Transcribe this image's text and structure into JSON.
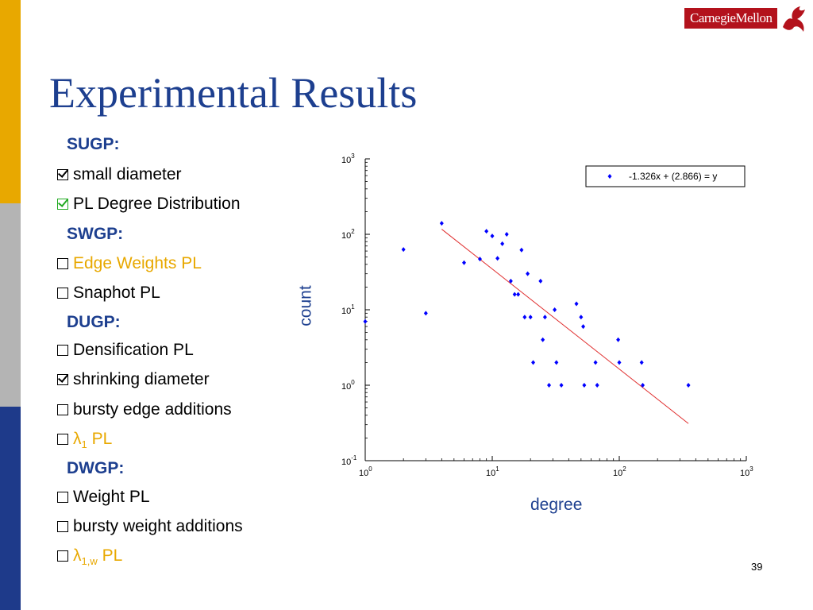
{
  "slide": {
    "title": "Experimental Results",
    "page_number": "39",
    "logo_text": "CarnegieMellon"
  },
  "list": {
    "sugp": "SUGP:",
    "small_diameter": "small diameter",
    "pl_degree": "PL Degree Distribution",
    "swgp": "SWGP:",
    "edge_weights": "Edge Weights PL",
    "snaphot": "Snaphot PL",
    "dugp": "DUGP:",
    "densification": "Densification PL",
    "shrinking": "shrinking diameter",
    "bursty_edge": "bursty edge additions",
    "lambda1_sym": "λ",
    "lambda1_sub": "1",
    "lambda1_pl": "PL",
    "dwgp": "DWGP:",
    "weight_pl": "Weight PL",
    "bursty_weight": "bursty weight additions",
    "lambda1w_sym": "λ",
    "lambda1w_sub": "1,w",
    "lambda1w_pl": "PL"
  },
  "colors": {
    "title": "#1d3f8f",
    "accent_orange": "#e8a800",
    "check_green": "#22aa22",
    "points": "#0000ff",
    "fit_line": "#e03030"
  },
  "chart_data": {
    "type": "scatter",
    "xlabel": "degree",
    "ylabel": "count",
    "xscale": "log",
    "yscale": "log",
    "xlim": [
      1,
      1000
    ],
    "ylim": [
      0.1,
      1000
    ],
    "x_tick_labels": [
      {
        "base": "10",
        "exp": "0"
      },
      {
        "base": "10",
        "exp": "1"
      },
      {
        "base": "10",
        "exp": "2"
      },
      {
        "base": "10",
        "exp": "3"
      }
    ],
    "y_tick_labels": [
      {
        "base": "10",
        "exp": "-1"
      },
      {
        "base": "10",
        "exp": "0"
      },
      {
        "base": "10",
        "exp": "1"
      },
      {
        "base": "10",
        "exp": "2"
      },
      {
        "base": "10",
        "exp": "3"
      }
    ],
    "legend": {
      "label": "-1.326x + (2.866) = y",
      "position": "top-right"
    },
    "fit": {
      "slope": -1.326,
      "intercept": 2.866,
      "x_range": [
        4,
        350
      ]
    },
    "points": [
      [
        1,
        7
      ],
      [
        2,
        63
      ],
      [
        3,
        9
      ],
      [
        4,
        140
      ],
      [
        6,
        42
      ],
      [
        8,
        47
      ],
      [
        9,
        110
      ],
      [
        10,
        95
      ],
      [
        11,
        48
      ],
      [
        12,
        75
      ],
      [
        13,
        100
      ],
      [
        14,
        24
      ],
      [
        15,
        16
      ],
      [
        16,
        16
      ],
      [
        17,
        62
      ],
      [
        18,
        8
      ],
      [
        19,
        30
      ],
      [
        20,
        8
      ],
      [
        21,
        2
      ],
      [
        24,
        24
      ],
      [
        25,
        4
      ],
      [
        26,
        8
      ],
      [
        28,
        1
      ],
      [
        31,
        10
      ],
      [
        32,
        2
      ],
      [
        35,
        1
      ],
      [
        46,
        12
      ],
      [
        50,
        8
      ],
      [
        52,
        6
      ],
      [
        53,
        1
      ],
      [
        65,
        2
      ],
      [
        67,
        1
      ],
      [
        98,
        4
      ],
      [
        100,
        2
      ],
      [
        150,
        2
      ],
      [
        153,
        1
      ],
      [
        350,
        1
      ]
    ]
  }
}
